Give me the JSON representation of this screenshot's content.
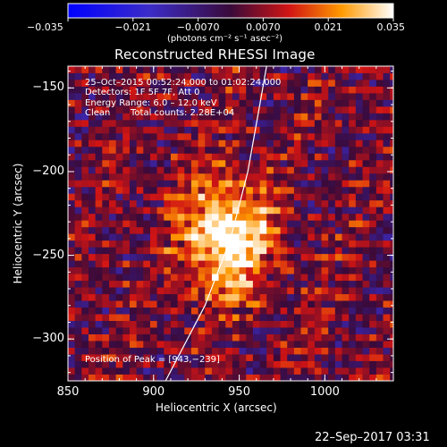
{
  "chart_data": {
    "type": "heatmap",
    "title": "Reconstructed RHESSI Image",
    "xlabel": "Heliocentric X (arcsec)",
    "ylabel": "Heliocentric Y (arcsec)",
    "xlim": [
      850,
      1040
    ],
    "ylim": [
      -325,
      -137
    ],
    "x_ticks": [
      850,
      900,
      950,
      1000
    ],
    "x_tick_labels": [
      "850",
      "900",
      "950",
      "1000"
    ],
    "y_ticks": [
      -300,
      -250,
      -200,
      -150
    ],
    "y_tick_labels": [
      "−300",
      "−250",
      "−200",
      "−150"
    ],
    "colorbar": {
      "range": [
        -0.035,
        0.035
      ],
      "ticks": [
        -0.035,
        -0.021,
        -0.007,
        0.007,
        0.021,
        0.035
      ],
      "tick_labels": [
        "−0.035",
        "−0.021",
        "−0.0070",
        "0.0070",
        "0.021",
        "0.035"
      ],
      "units": "(photons cm⁻² s⁻¹ asec⁻²)",
      "colormap": "blue-purple-red-yellow-white"
    },
    "annotations": {
      "time_range": "25–Oct–2015 00:52:24.000 to 01:02:24.000",
      "detectors": "Detectors: 1F 5F 7F, Att 0",
      "energy_range": "Energy Range: 6.0 – 12.0 keV",
      "method": "Clean",
      "total_counts": "Total counts: 2.28E+04",
      "peak_position": "Position of Peak = [943,−239]"
    },
    "peak": {
      "x": 943,
      "y": -239
    },
    "limb_curve": [
      [
        907,
        -325
      ],
      [
        930,
        -280
      ],
      [
        945,
        -240
      ],
      [
        955,
        -200
      ],
      [
        962,
        -160
      ],
      [
        966,
        -137
      ]
    ],
    "pixel_size_arcsec": [
      4,
      4
    ]
  },
  "footer": {
    "date": "22–Sep–2017 03:31"
  }
}
